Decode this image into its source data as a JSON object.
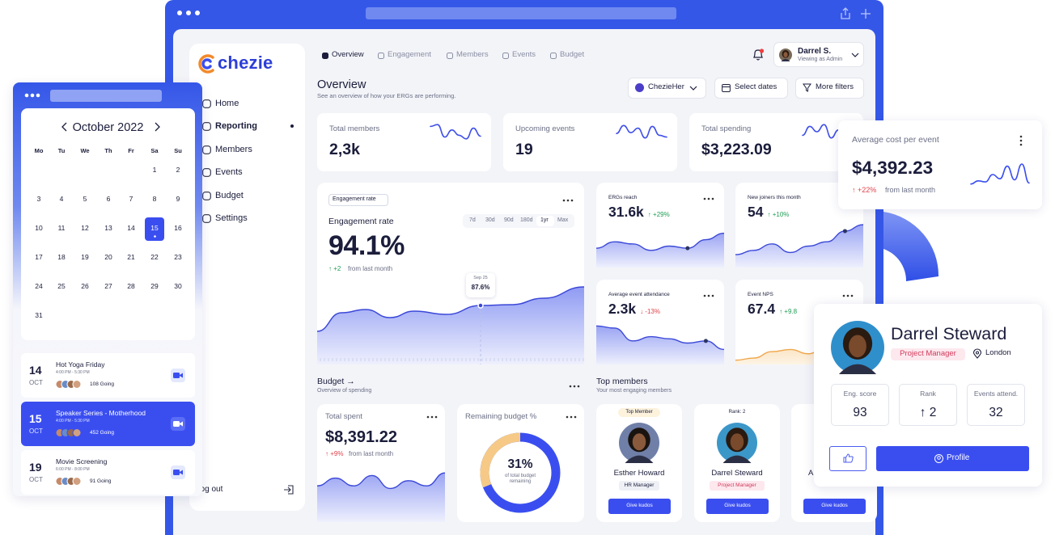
{
  "main_window": {
    "brand": "chezie",
    "nav": [
      "Home",
      "Reporting",
      "Members",
      "Events",
      "Budget",
      "Settings"
    ],
    "logout": "Log out",
    "tabs": [
      "Overview",
      "Engagement",
      "Members",
      "Events",
      "Budget"
    ],
    "user": {
      "name": "Darrel S.",
      "role": "Viewing as Admin"
    },
    "page_title": "Overview",
    "page_subtitle": "See an overview of how your ERGs are performing.",
    "filters": [
      "ChezieHer",
      "Select dates",
      "More filters"
    ],
    "stats": [
      {
        "label": "Total members",
        "value": "2,3k"
      },
      {
        "label": "Upcoming events",
        "value": "19"
      },
      {
        "label": "Total spending",
        "value": "$3,223.09"
      }
    ],
    "engagement": {
      "tag": "Engagement rate",
      "title": "Engagement rate",
      "ranges": [
        "7d",
        "30d",
        "90d",
        "180d",
        "1yr",
        "Max"
      ],
      "value": "94.1%",
      "delta": "↑ +2",
      "delta_note": "from last month",
      "tooltip": {
        "date": "Sep 25",
        "value": "87.6%"
      }
    },
    "metrics": [
      {
        "label": "ERGs reach",
        "value": "31.6k",
        "delta": "↑ +29%"
      },
      {
        "label": "New joiners this month",
        "value": "54",
        "delta": "↑ +10%"
      },
      {
        "label": "Average event attendance",
        "value": "2.3k",
        "delta": "↓ -13%"
      },
      {
        "label": "Event NPS",
        "value": "67.4",
        "delta": "↑ +9.8"
      }
    ],
    "budget": {
      "title": "Budget →",
      "subtitle": "Overview of spending",
      "total_spent": {
        "label": "Total spent",
        "value": "$8,391.22",
        "delta": "↑ +9%",
        "delta_note": "from last month"
      },
      "remaining": {
        "label": "Remaining budget %",
        "value": 31,
        "value_label": "31%",
        "caption": "of total budget remaining"
      }
    },
    "top_members": {
      "title": "Top members",
      "subtitle": "Your most engaging members",
      "members": [
        {
          "badge": "Top Member",
          "name": "Esther Howard",
          "role": "HR Manager",
          "action": "Give kudos"
        },
        {
          "badge": "Rank: 2",
          "name": "Darrel Steward",
          "role": "Project Manager",
          "action": "Give kudos"
        },
        {
          "name": "A",
          "action": "Give kudos"
        }
      ]
    }
  },
  "calendar": {
    "month": "October 2022",
    "weekdays": [
      "Mo",
      "Tu",
      "We",
      "Th",
      "Fr",
      "Sa",
      "Su"
    ],
    "weeks": [
      [
        null,
        null,
        null,
        null,
        null,
        1,
        2
      ],
      [
        3,
        4,
        5,
        6,
        7,
        8,
        9
      ],
      [
        10,
        11,
        12,
        13,
        14,
        15,
        16
      ],
      [
        17,
        18,
        19,
        20,
        21,
        22,
        23
      ],
      [
        24,
        25,
        26,
        27,
        28,
        29,
        30
      ],
      [
        31,
        null,
        null,
        null,
        null,
        null,
        null
      ]
    ],
    "selected_day": 15,
    "events": [
      {
        "day": "14",
        "month": "OCT",
        "title": "Hot Yoga Friday",
        "time": "4:00 PM - 5:30 PM",
        "going": "108 Going",
        "selected": false
      },
      {
        "day": "15",
        "month": "OCT",
        "title": "Speaker Series - Motherhood",
        "time": "4:00 PM - 5:30 PM",
        "going": "452 Going",
        "selected": true
      },
      {
        "day": "19",
        "month": "OCT",
        "title": "Movie Screening",
        "time": "6:00 PM - 8:00 PM",
        "going": "91 Going",
        "selected": false
      }
    ]
  },
  "avg_cost": {
    "label": "Average cost per event",
    "value": "$4,392.23",
    "delta": "↑ +22%",
    "delta_note": "from last month"
  },
  "profile": {
    "name": "Darrel Steward",
    "role": "Project Manager",
    "location": "London",
    "stats": [
      {
        "label": "Eng. score",
        "value": "93"
      },
      {
        "label": "Rank",
        "value": "↑ 2"
      },
      {
        "label": "Events attend.",
        "value": "32"
      }
    ],
    "button": "Profile"
  }
}
